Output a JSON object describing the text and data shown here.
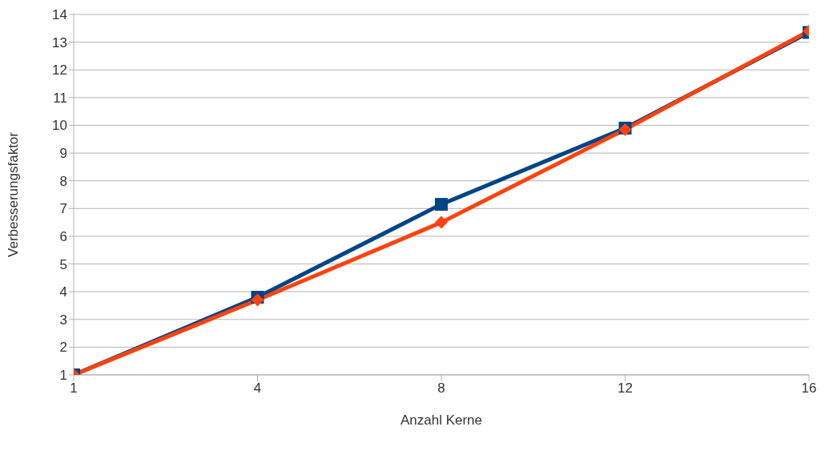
{
  "chart_data": {
    "type": "line",
    "xlabel": "Anzahl Kerne",
    "ylabel": "Verbesserungsfaktor",
    "categories": [
      "1",
      "4",
      "8",
      "12",
      "16"
    ],
    "series": [
      {
        "color": "#004586",
        "marker": "square",
        "values": [
          1,
          3.8,
          7.15,
          9.9,
          13.35
        ]
      },
      {
        "color": "#ff420e",
        "marker": "diamond",
        "values": [
          1,
          3.7,
          6.5,
          9.85,
          13.4
        ]
      }
    ],
    "ylim": [
      1,
      14
    ],
    "yticks": [
      1,
      2,
      3,
      4,
      5,
      6,
      7,
      8,
      9,
      10,
      11,
      12,
      13,
      14
    ],
    "grid": "y",
    "line_style": "solid",
    "legend": false
  }
}
